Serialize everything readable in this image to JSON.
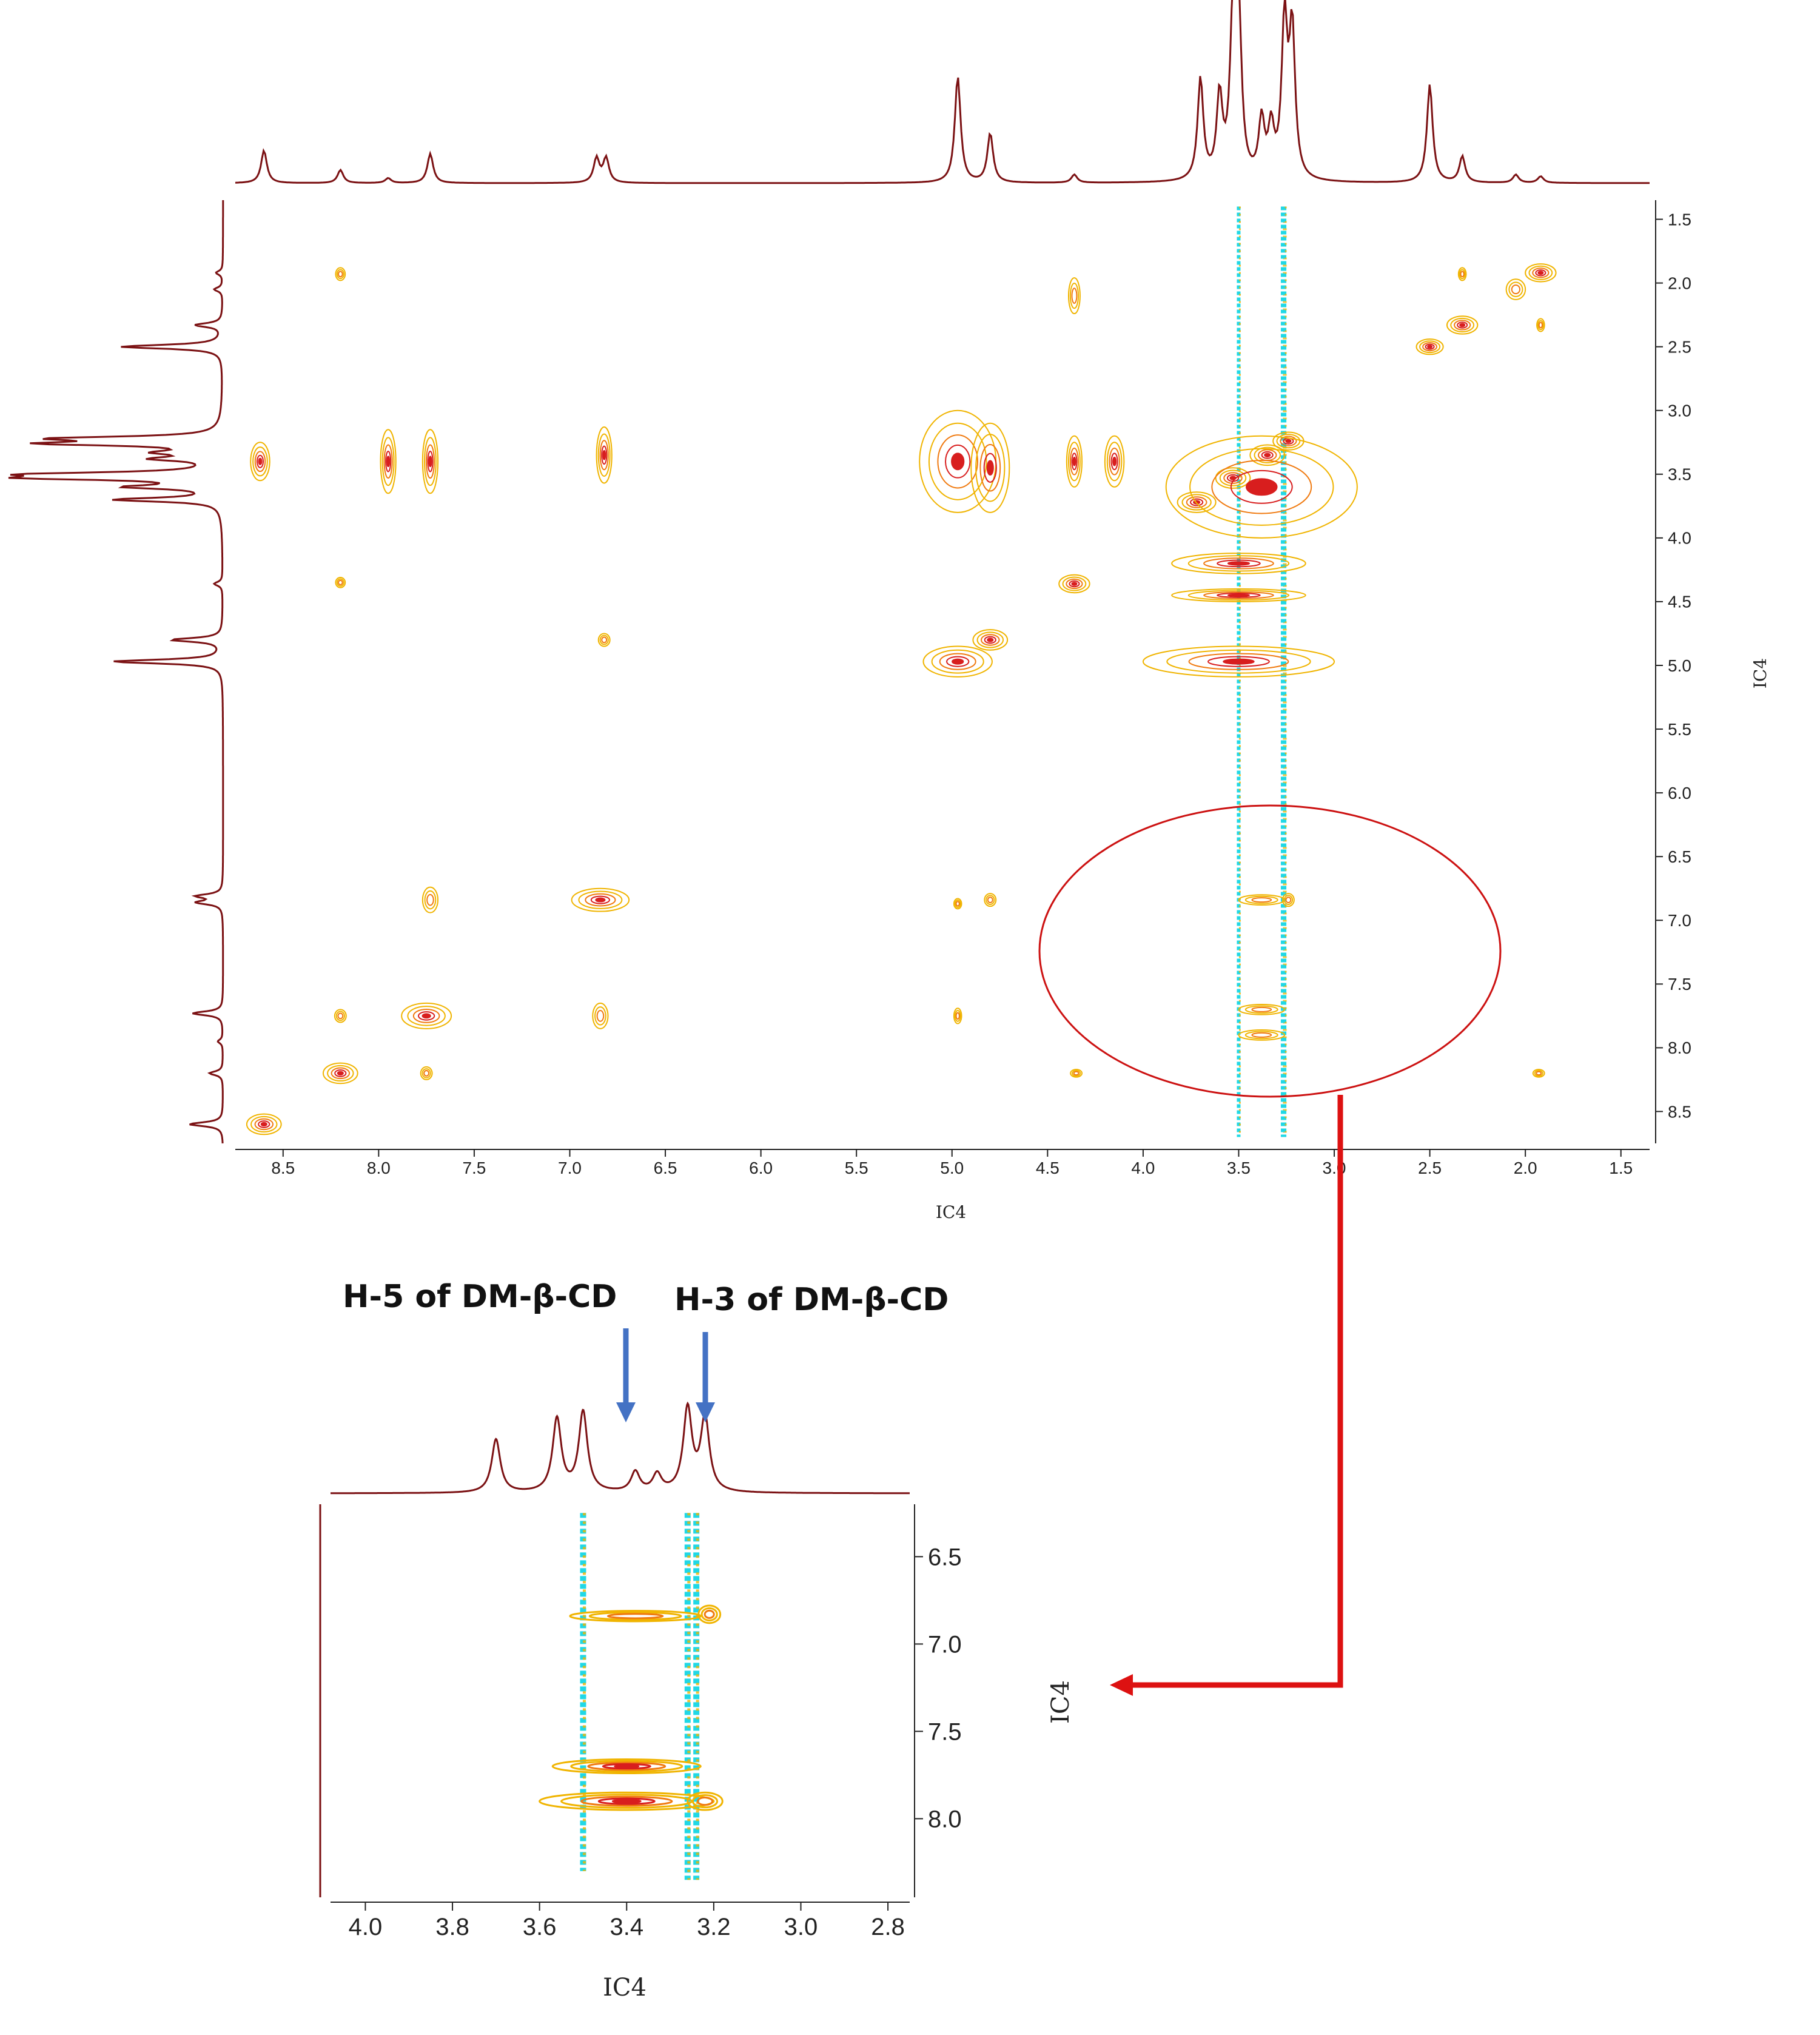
{
  "colors": {
    "spectrum": "#7b1113",
    "contour_outer": "#f0b400",
    "contour_mid": "#f07a10",
    "contour_core": "#d81e1e",
    "negative": "#20d8e6",
    "negative_core": "#17b3a6",
    "highlight": "#cc1111",
    "arrow_blue": "#4472c4"
  },
  "annotations": {
    "h5": "H-5 of DM-β-CD",
    "h3": "H-3 of DM-β-CD"
  },
  "chart_data": [
    {
      "type": "heatmap",
      "title": "",
      "xlabel": "IC4",
      "ylabel": "IC4",
      "xlim": [
        8.75,
        1.35
      ],
      "ylim": [
        1.35,
        8.75
      ],
      "x_ticks": [
        "8.5",
        "8.0",
        "7.5",
        "7.0",
        "6.5",
        "6.0",
        "5.5",
        "5.0",
        "4.5",
        "4.0",
        "3.5",
        "3.0",
        "2.5",
        "2.0",
        "1.5"
      ],
      "y_ticks": [
        "1.5",
        "2.0",
        "2.5",
        "3.0",
        "3.5",
        "4.0",
        "4.5",
        "5.0",
        "5.5",
        "6.0",
        "6.5",
        "7.0",
        "7.5",
        "8.0",
        "8.5"
      ],
      "projection_peaks": [
        {
          "ppm": 8.6,
          "h": 0.2
        },
        {
          "ppm": 8.2,
          "h": 0.08
        },
        {
          "ppm": 7.95,
          "h": 0.03
        },
        {
          "ppm": 7.73,
          "h": 0.18
        },
        {
          "ppm": 6.86,
          "h": 0.15
        },
        {
          "ppm": 6.81,
          "h": 0.15
        },
        {
          "ppm": 4.97,
          "h": 0.65
        },
        {
          "ppm": 4.8,
          "h": 0.3
        },
        {
          "ppm": 4.36,
          "h": 0.05
        },
        {
          "ppm": 3.7,
          "h": 0.62
        },
        {
          "ppm": 3.6,
          "h": 0.5
        },
        {
          "ppm": 3.53,
          "h": 0.95
        },
        {
          "ppm": 3.5,
          "h": 0.95
        },
        {
          "ppm": 3.38,
          "h": 0.35
        },
        {
          "ppm": 3.33,
          "h": 0.3
        },
        {
          "ppm": 3.26,
          "h": 0.95
        },
        {
          "ppm": 3.22,
          "h": 0.9
        },
        {
          "ppm": 2.5,
          "h": 0.6
        },
        {
          "ppm": 2.33,
          "h": 0.16
        },
        {
          "ppm": 2.05,
          "h": 0.05
        },
        {
          "ppm": 1.92,
          "h": 0.04
        }
      ],
      "diagonal_peaks": [
        {
          "x": 8.6,
          "y": 8.6,
          "w": 0.09,
          "h": 0.08
        },
        {
          "x": 8.2,
          "y": 8.2,
          "w": 0.09,
          "h": 0.08
        },
        {
          "x": 7.75,
          "y": 7.75,
          "w": 0.13,
          "h": 0.1
        },
        {
          "x": 6.84,
          "y": 6.84,
          "w": 0.15,
          "h": 0.09
        },
        {
          "x": 4.97,
          "y": 4.97,
          "w": 0.18,
          "h": 0.12
        },
        {
          "x": 4.8,
          "y": 4.8,
          "w": 0.09,
          "h": 0.08
        },
        {
          "x": 4.36,
          "y": 4.36,
          "w": 0.08,
          "h": 0.07
        },
        {
          "x": 3.72,
          "y": 3.72,
          "w": 0.1,
          "h": 0.08
        },
        {
          "x": 3.53,
          "y": 3.53,
          "w": 0.09,
          "h": 0.08
        },
        {
          "x": 3.35,
          "y": 3.35,
          "w": 0.09,
          "h": 0.08
        },
        {
          "x": 3.24,
          "y": 3.24,
          "w": 0.08,
          "h": 0.07
        },
        {
          "x": 2.5,
          "y": 2.5,
          "w": 0.07,
          "h": 0.06
        },
        {
          "x": 2.33,
          "y": 2.33,
          "w": 0.08,
          "h": 0.07
        },
        {
          "x": 1.92,
          "y": 1.92,
          "w": 0.08,
          "h": 0.07
        }
      ],
      "cross_peaks": [
        {
          "x": 8.2,
          "y": 1.93,
          "w": 0.025,
          "h": 0.05
        },
        {
          "x": 8.2,
          "y": 4.35,
          "w": 0.025,
          "h": 0.04
        },
        {
          "x": 8.62,
          "y": 3.4,
          "w": 0.05,
          "h": 0.15
        },
        {
          "x": 7.95,
          "y": 3.4,
          "w": 0.04,
          "h": 0.25
        },
        {
          "x": 7.73,
          "y": 3.4,
          "w": 0.04,
          "h": 0.25
        },
        {
          "x": 6.82,
          "y": 3.35,
          "w": 0.04,
          "h": 0.22
        },
        {
          "x": 6.82,
          "y": 4.8,
          "w": 0.03,
          "h": 0.05
        },
        {
          "x": 7.73,
          "y": 6.84,
          "w": 0.04,
          "h": 0.1
        },
        {
          "x": 6.84,
          "y": 7.75,
          "w": 0.04,
          "h": 0.1
        },
        {
          "x": 7.75,
          "y": 8.2,
          "w": 0.03,
          "h": 0.05
        },
        {
          "x": 8.2,
          "y": 7.75,
          "w": 0.03,
          "h": 0.05
        },
        {
          "x": 4.97,
          "y": 3.4,
          "w": 0.2,
          "h": 0.4
        },
        {
          "x": 4.8,
          "y": 3.45,
          "w": 0.1,
          "h": 0.35
        },
        {
          "x": 4.36,
          "y": 2.1,
          "w": 0.03,
          "h": 0.14
        },
        {
          "x": 4.36,
          "y": 3.4,
          "w": 0.04,
          "h": 0.2
        },
        {
          "x": 4.15,
          "y": 3.4,
          "w": 0.05,
          "h": 0.2
        },
        {
          "x": 3.5,
          "y": 4.97,
          "w": 0.5,
          "h": 0.12
        },
        {
          "x": 3.5,
          "y": 4.2,
          "w": 0.35,
          "h": 0.08
        },
        {
          "x": 3.5,
          "y": 4.45,
          "w": 0.35,
          "h": 0.05
        },
        {
          "x": 3.38,
          "y": 3.6,
          "w": 0.5,
          "h": 0.4
        },
        {
          "x": 3.38,
          "y": 6.84,
          "w": 0.12,
          "h": 0.04
        },
        {
          "x": 3.24,
          "y": 6.84,
          "w": 0.03,
          "h": 0.05
        },
        {
          "x": 3.38,
          "y": 7.7,
          "w": 0.12,
          "h": 0.04
        },
        {
          "x": 3.38,
          "y": 7.9,
          "w": 0.12,
          "h": 0.04
        },
        {
          "x": 2.33,
          "y": 1.93,
          "w": 0.02,
          "h": 0.05
        },
        {
          "x": 2.05,
          "y": 2.05,
          "w": 0.05,
          "h": 0.08
        },
        {
          "x": 1.92,
          "y": 2.33,
          "w": 0.02,
          "h": 0.05
        },
        {
          "x": 4.97,
          "y": 7.75,
          "w": 0.02,
          "h": 0.06
        },
        {
          "x": 4.97,
          "y": 6.87,
          "w": 0.02,
          "h": 0.04
        },
        {
          "x": 4.8,
          "y": 6.84,
          "w": 0.03,
          "h": 0.05
        },
        {
          "x": 4.35,
          "y": 8.2,
          "w": 0.03,
          "h": 0.03
        },
        {
          "x": 1.93,
          "y": 8.2,
          "w": 0.03,
          "h": 0.03
        }
      ],
      "negative_stripes": [
        {
          "x": 3.5,
          "y0": 1.4,
          "y1": 8.7
        },
        {
          "x": 3.27,
          "y0": 1.4,
          "y1": 8.7
        },
        {
          "x": 3.26,
          "y0": 1.4,
          "y1": 8.7
        }
      ]
    },
    {
      "type": "heatmap",
      "title": "",
      "xlabel": "IC4",
      "ylabel": "IC4",
      "xlim": [
        4.08,
        2.75
      ],
      "ylim": [
        6.2,
        8.45
      ],
      "x_ticks": [
        "4.0",
        "3.8",
        "3.6",
        "3.4",
        "3.2",
        "3.0",
        "2.8"
      ],
      "y_ticks": [
        "6.5",
        "7.0",
        "7.5",
        "8.0"
      ],
      "projection_peaks": [
        {
          "ppm": 3.7,
          "h": 0.4
        },
        {
          "ppm": 3.56,
          "h": 0.55
        },
        {
          "ppm": 3.5,
          "h": 0.6
        },
        {
          "ppm": 3.38,
          "h": 0.15
        },
        {
          "ppm": 3.33,
          "h": 0.13
        },
        {
          "ppm": 3.26,
          "h": 0.62
        },
        {
          "ppm": 3.22,
          "h": 0.55
        }
      ],
      "cross_peaks": [
        {
          "x": 3.38,
          "y": 6.84,
          "w": 0.15,
          "h": 0.03
        },
        {
          "x": 3.21,
          "y": 6.83,
          "w": 0.025,
          "h": 0.05
        },
        {
          "x": 3.4,
          "y": 7.7,
          "w": 0.17,
          "h": 0.04
        },
        {
          "x": 3.4,
          "y": 7.9,
          "w": 0.2,
          "h": 0.05
        },
        {
          "x": 3.22,
          "y": 7.9,
          "w": 0.04,
          "h": 0.05
        }
      ],
      "negative_stripes": [
        {
          "x": 3.5,
          "y0": 6.25,
          "y1": 8.3
        },
        {
          "x": 3.26,
          "y0": 6.25,
          "y1": 8.35
        },
        {
          "x": 3.24,
          "y0": 6.25,
          "y1": 8.35
        }
      ]
    }
  ]
}
